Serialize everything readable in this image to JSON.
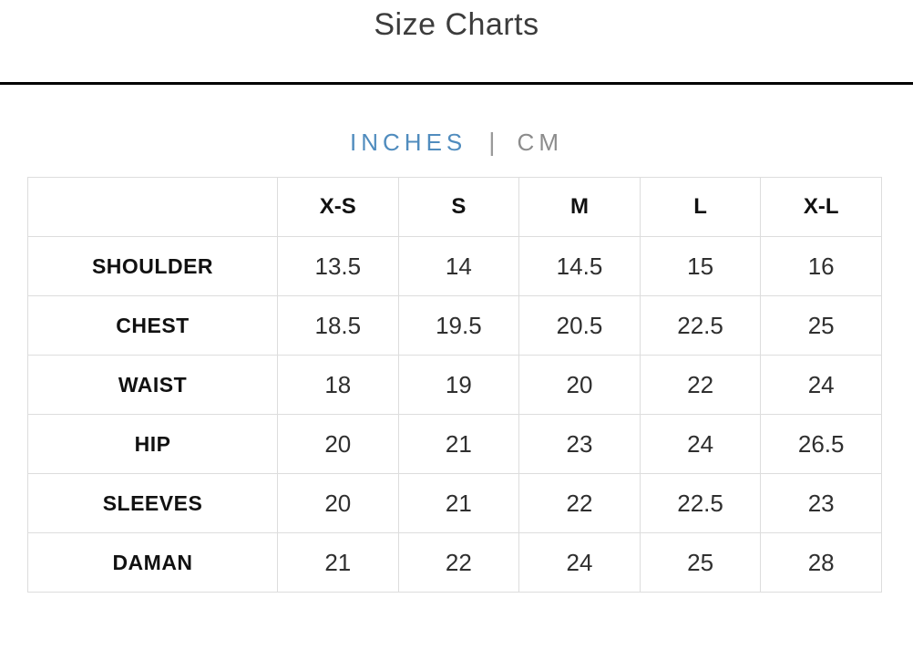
{
  "page": {
    "title": "Size Charts"
  },
  "unit_toggle": {
    "active_option": "INCHES",
    "inactive_option": "CM",
    "separator": "|",
    "active_color": "#508cbe",
    "inactive_color": "#8c8c8c"
  },
  "size_chart": {
    "unit": "INCHES",
    "columns": [
      "X-S",
      "S",
      "M",
      "L",
      "X-L"
    ],
    "rows": [
      {
        "label": "SHOULDER",
        "values": [
          "13.5",
          "14",
          "14.5",
          "15",
          "16"
        ]
      },
      {
        "label": "CHEST",
        "values": [
          "18.5",
          "19.5",
          "20.5",
          "22.5",
          "25"
        ]
      },
      {
        "label": "WAIST",
        "values": [
          "18",
          "19",
          "20",
          "22",
          "24"
        ]
      },
      {
        "label": "HIP",
        "values": [
          "20",
          "21",
          "23",
          "24",
          "26.5"
        ]
      },
      {
        "label": "SLEEVES",
        "values": [
          "20",
          "21",
          "22",
          "22.5",
          "23"
        ]
      },
      {
        "label": "DAMAN",
        "values": [
          "21",
          "22",
          "24",
          "25",
          "28"
        ]
      }
    ]
  }
}
